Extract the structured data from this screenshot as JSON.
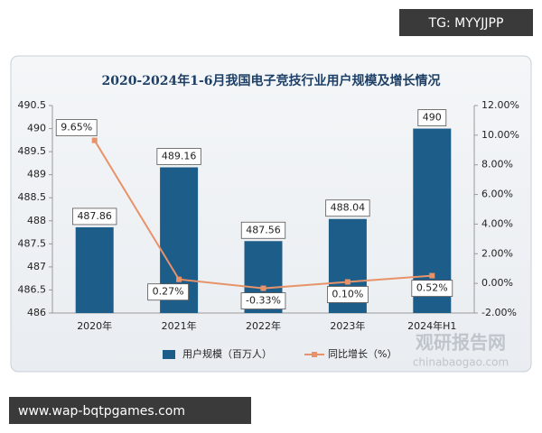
{
  "overlay": {
    "top_badge": "TG: MYYJJPP",
    "bottom_badge": "www.wap-bqtpgames.com",
    "watermark": "观研报告网",
    "watermark_url": "chinabaogao.com"
  },
  "chart_data": {
    "type": "bar",
    "title": "2020-2024年1-6月我国电子竞技行业用户规模及增长情况",
    "categories": [
      "2020年",
      "2021年",
      "2022年",
      "2023年",
      "2024年H1"
    ],
    "series": [
      {
        "name": "用户规模（百万人）",
        "color": "#1d5d8a",
        "values": [
          487.86,
          489.16,
          487.56,
          488.04,
          490
        ]
      },
      {
        "name": "同比增长（%）",
        "color": "#e8926a",
        "axis": "y2",
        "type": "line",
        "values": [
          9.65,
          0.27,
          -0.33,
          0.1,
          0.52
        ],
        "value_labels": [
          "9.65%",
          "0.27%",
          "-0.33%",
          "0.10%",
          "0.52%"
        ]
      }
    ],
    "ylim": [
      486,
      490.5
    ],
    "yticks": [
      486,
      486.5,
      487,
      487.5,
      488,
      488.5,
      489,
      489.5,
      490,
      490.5
    ],
    "y2lim": [
      -2,
      12
    ],
    "y2ticks": [
      {
        "value": -2,
        "label": "-2.00%"
      },
      {
        "value": 0,
        "label": "0.00%"
      },
      {
        "value": 2,
        "label": "2.00%"
      },
      {
        "value": 4,
        "label": "4.00%"
      },
      {
        "value": 6,
        "label": "6.00%"
      },
      {
        "value": 8,
        "label": "8.00%"
      },
      {
        "value": 10,
        "label": "10.00%"
      },
      {
        "value": 12,
        "label": "12.00%"
      }
    ],
    "grid": false,
    "legend": "bottom"
  }
}
